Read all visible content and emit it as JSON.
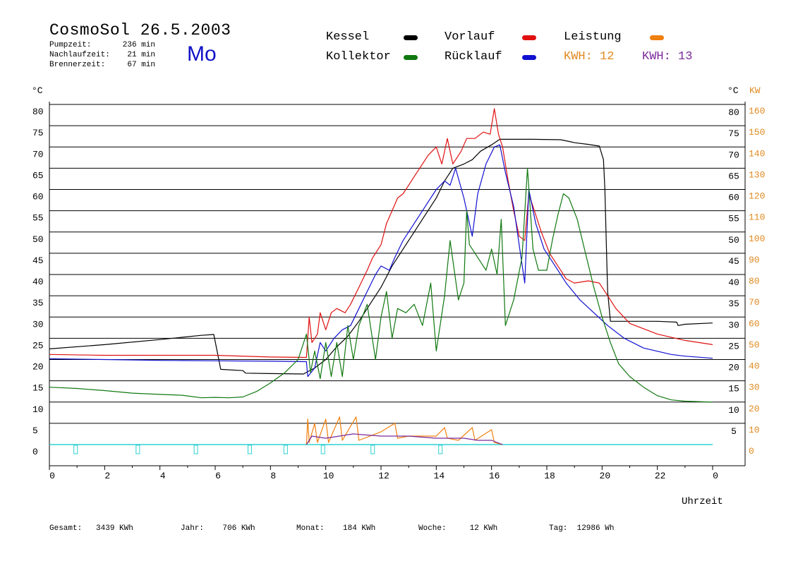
{
  "header": {
    "title": "CosmoSol 26.5.2003",
    "day": "Mo",
    "stats": [
      {
        "label": "Pumpzeit:",
        "value": "236 min"
      },
      {
        "label": "Nachlaufzeit:",
        "value": "21 min"
      },
      {
        "label": "Brennerzeit:",
        "value": "67 min"
      }
    ]
  },
  "legend": {
    "kessel": {
      "label": "Kessel",
      "color": "#000000"
    },
    "kollektor": {
      "label": "Kollektor",
      "color": "#107810"
    },
    "vorlauf": {
      "label": "Vorlauf",
      "color": "#e01010"
    },
    "ruecklauf": {
      "label": "Rücklauf",
      "color": "#1010d0"
    },
    "leistung": {
      "label": "Leistung",
      "color": "#f08010"
    },
    "kwh1": {
      "label": "KWH:",
      "value": "12",
      "color": "#e08a20"
    },
    "kwh2": {
      "label": "KWH:",
      "value": "13",
      "color": "#7a2a9a"
    }
  },
  "footer": {
    "gesamt": {
      "label": "Gesamt:",
      "value": "3439 KWh"
    },
    "jahr": {
      "label": "Jahr:",
      "value": "706 KWh"
    },
    "monat": {
      "label": "Monat:",
      "value": "184 KWh"
    },
    "woche": {
      "label": "Woche:",
      "value": "12 KWh"
    },
    "tag": {
      "label": "Tag:",
      "value": "12986 Wh"
    }
  },
  "chart_data": {
    "type": "line",
    "title": "CosmoSol 26.5.2003",
    "xlabel": "Uhrzeit",
    "ylabel": "°C",
    "y2label": "KW",
    "xlim": [
      0,
      24
    ],
    "ylim": [
      0,
      80
    ],
    "y2lim": [
      0,
      160
    ],
    "grid": true,
    "legend_position": "top",
    "x_ticks": [
      "0",
      "2",
      "4",
      "6",
      "8",
      "10",
      "12",
      "14",
      "16",
      "18",
      "20",
      "22",
      "0"
    ],
    "y_ticks_left": [
      "0",
      "5",
      "10",
      "15",
      "20",
      "25",
      "30",
      "35",
      "40",
      "45",
      "50",
      "55",
      "60",
      "65",
      "70",
      "75",
      "80"
    ],
    "y_ticks_right": [
      "5",
      "10",
      "15",
      "20",
      "25",
      "30",
      "35",
      "40",
      "45",
      "50",
      "55",
      "60",
      "65",
      "70",
      "75",
      "80"
    ],
    "y2_ticks": [
      "0",
      "10",
      "20",
      "30",
      "40",
      "50",
      "60",
      "70",
      "80",
      "90",
      "100",
      "110",
      "120",
      "130",
      "140",
      "150",
      "160"
    ],
    "series": [
      {
        "name": "Kessel",
        "color": "#000000",
        "points": [
          [
            0,
            22.5
          ],
          [
            2,
            23.5
          ],
          [
            4,
            24.7
          ],
          [
            5.5,
            25.7
          ],
          [
            5.95,
            25.9
          ],
          [
            6.1,
            21
          ],
          [
            6.2,
            17.7
          ],
          [
            7,
            17.4
          ],
          [
            7.1,
            16.8
          ],
          [
            8,
            16.7
          ],
          [
            9.2,
            16.6
          ],
          [
            9.3,
            17
          ],
          [
            9.6,
            18
          ],
          [
            10,
            20
          ],
          [
            10.4,
            23
          ],
          [
            10.8,
            25.5
          ],
          [
            11.2,
            29
          ],
          [
            11.6,
            33
          ],
          [
            12,
            37
          ],
          [
            12.4,
            42
          ],
          [
            12.8,
            46
          ],
          [
            13.2,
            50
          ],
          [
            13.6,
            54
          ],
          [
            14,
            58
          ],
          [
            14.3,
            62
          ],
          [
            14.6,
            65
          ],
          [
            15,
            66
          ],
          [
            15.3,
            67
          ],
          [
            15.6,
            69
          ],
          [
            16,
            70.5
          ],
          [
            16.3,
            71.8
          ],
          [
            16.7,
            71.8
          ],
          [
            17.5,
            71.8
          ],
          [
            18.5,
            71.7
          ],
          [
            18.8,
            71.3
          ],
          [
            19,
            71
          ],
          [
            19.5,
            70.6
          ],
          [
            19.9,
            70.2
          ],
          [
            20.05,
            67
          ],
          [
            20.1,
            60
          ],
          [
            20.15,
            48
          ],
          [
            20.2,
            36
          ],
          [
            20.3,
            29
          ],
          [
            22,
            29
          ],
          [
            22.7,
            28.8
          ],
          [
            22.75,
            28
          ],
          [
            23,
            28.3
          ],
          [
            24,
            28.6
          ]
        ]
      },
      {
        "name": "Vorlauf",
        "color": "#e01010",
        "points": [
          [
            0,
            21.2
          ],
          [
            2,
            21
          ],
          [
            4,
            21
          ],
          [
            6,
            21
          ],
          [
            8,
            20.6
          ],
          [
            9.3,
            20.5
          ],
          [
            9.4,
            30
          ],
          [
            9.5,
            24
          ],
          [
            9.7,
            26
          ],
          [
            9.8,
            31
          ],
          [
            10,
            27
          ],
          [
            10.2,
            31
          ],
          [
            10.4,
            32
          ],
          [
            10.7,
            31
          ],
          [
            10.9,
            33
          ],
          [
            11.2,
            37
          ],
          [
            11.5,
            41
          ],
          [
            11.7,
            44
          ],
          [
            12,
            47
          ],
          [
            12.2,
            52
          ],
          [
            12.4,
            55
          ],
          [
            12.6,
            58
          ],
          [
            12.8,
            59
          ],
          [
            13.1,
            62
          ],
          [
            13.4,
            65
          ],
          [
            13.7,
            68
          ],
          [
            14,
            70
          ],
          [
            14.2,
            66
          ],
          [
            14.4,
            72
          ],
          [
            14.6,
            66
          ],
          [
            14.9,
            69
          ],
          [
            15.1,
            72
          ],
          [
            15.4,
            72
          ],
          [
            15.7,
            73.5
          ],
          [
            15.95,
            73
          ],
          [
            16.1,
            79
          ],
          [
            16.25,
            73
          ],
          [
            16.4,
            70
          ],
          [
            16.6,
            62
          ],
          [
            16.8,
            55
          ],
          [
            17,
            49
          ],
          [
            17.2,
            48
          ],
          [
            17.35,
            59
          ],
          [
            17.5,
            56
          ],
          [
            17.8,
            50
          ],
          [
            18.1,
            45
          ],
          [
            18.4,
            42
          ],
          [
            18.7,
            39
          ],
          [
            19,
            38
          ],
          [
            19.5,
            38.5
          ],
          [
            19.9,
            38
          ],
          [
            20.2,
            35
          ],
          [
            20.5,
            32
          ],
          [
            21,
            28.5
          ],
          [
            22,
            26
          ],
          [
            23,
            24.5
          ],
          [
            24,
            23.5
          ]
        ]
      },
      {
        "name": "Rücklauf",
        "color": "#1010d0",
        "points": [
          [
            0,
            20.2
          ],
          [
            2,
            20
          ],
          [
            4,
            19.8
          ],
          [
            6,
            19.7
          ],
          [
            8,
            19.6
          ],
          [
            9.3,
            19.5
          ],
          [
            9.35,
            16
          ],
          [
            9.6,
            18
          ],
          [
            9.8,
            24
          ],
          [
            10,
            22
          ],
          [
            10.3,
            25
          ],
          [
            10.6,
            27
          ],
          [
            10.9,
            28
          ],
          [
            11.2,
            32
          ],
          [
            11.5,
            36
          ],
          [
            11.8,
            40
          ],
          [
            12,
            42
          ],
          [
            12.3,
            41
          ],
          [
            12.5,
            44
          ],
          [
            12.8,
            48
          ],
          [
            13.2,
            52
          ],
          [
            13.6,
            56
          ],
          [
            14,
            60
          ],
          [
            14.3,
            62
          ],
          [
            14.5,
            61
          ],
          [
            14.7,
            65
          ],
          [
            15,
            58
          ],
          [
            15.3,
            49
          ],
          [
            15.5,
            59
          ],
          [
            15.8,
            66
          ],
          [
            16.1,
            70
          ],
          [
            16.3,
            70.5
          ],
          [
            16.5,
            64
          ],
          [
            16.8,
            56
          ],
          [
            17,
            47
          ],
          [
            17.2,
            38
          ],
          [
            17.35,
            60
          ],
          [
            17.6,
            52
          ],
          [
            17.9,
            46
          ],
          [
            18.3,
            42
          ],
          [
            18.7,
            38
          ],
          [
            19.2,
            34
          ],
          [
            19.7,
            31
          ],
          [
            20.2,
            28
          ],
          [
            20.8,
            25
          ],
          [
            21.5,
            22.7
          ],
          [
            22.5,
            21.2
          ],
          [
            23,
            20.8
          ],
          [
            24,
            20.3
          ]
        ]
      },
      {
        "name": "Kollektor",
        "color": "#107810",
        "points": [
          [
            0,
            13.5
          ],
          [
            1,
            13.2
          ],
          [
            2,
            12.7
          ],
          [
            3,
            12.1
          ],
          [
            4,
            11.8
          ],
          [
            4.8,
            11.6
          ],
          [
            5.5,
            11
          ],
          [
            6,
            11.1
          ],
          [
            6.5,
            11
          ],
          [
            7,
            11.2
          ],
          [
            7.5,
            12.5
          ],
          [
            8,
            14.5
          ],
          [
            8.5,
            16.8
          ],
          [
            9,
            20
          ],
          [
            9.3,
            26
          ],
          [
            9.45,
            17
          ],
          [
            9.6,
            22
          ],
          [
            9.8,
            15.5
          ],
          [
            10,
            24
          ],
          [
            10.2,
            16
          ],
          [
            10.4,
            24
          ],
          [
            10.6,
            16
          ],
          [
            10.8,
            28
          ],
          [
            11,
            20
          ],
          [
            11.2,
            28
          ],
          [
            11.5,
            33
          ],
          [
            11.8,
            20
          ],
          [
            12,
            30
          ],
          [
            12.2,
            36
          ],
          [
            12.4,
            25
          ],
          [
            12.6,
            32
          ],
          [
            12.9,
            31
          ],
          [
            13.2,
            33
          ],
          [
            13.5,
            28
          ],
          [
            13.8,
            38
          ],
          [
            14,
            22
          ],
          [
            14.3,
            35
          ],
          [
            14.5,
            48
          ],
          [
            14.8,
            34
          ],
          [
            15,
            38
          ],
          [
            15.1,
            55
          ],
          [
            15.2,
            47
          ],
          [
            15.5,
            44
          ],
          [
            15.8,
            41
          ],
          [
            16,
            46
          ],
          [
            16.2,
            40
          ],
          [
            16.35,
            53
          ],
          [
            16.5,
            28
          ],
          [
            16.8,
            34
          ],
          [
            17.1,
            44
          ],
          [
            17.3,
            65
          ],
          [
            17.5,
            46
          ],
          [
            17.7,
            41
          ],
          [
            18,
            41
          ],
          [
            18.2,
            48
          ],
          [
            18.4,
            54
          ],
          [
            18.6,
            59
          ],
          [
            18.8,
            58
          ],
          [
            19.1,
            53
          ],
          [
            19.4,
            45
          ],
          [
            19.7,
            37
          ],
          [
            20,
            30
          ],
          [
            20.3,
            24
          ],
          [
            20.6,
            19
          ],
          [
            21,
            16
          ],
          [
            21.5,
            13.5
          ],
          [
            22,
            11.5
          ],
          [
            22.5,
            10.5
          ],
          [
            23,
            10.2
          ],
          [
            24,
            10
          ]
        ]
      },
      {
        "name": "Leistung",
        "color": "#f08010",
        "axis": "y2",
        "points": [
          [
            9.3,
            0
          ],
          [
            9.35,
            12
          ],
          [
            9.4,
            1
          ],
          [
            9.6,
            10
          ],
          [
            9.7,
            1
          ],
          [
            10,
            12
          ],
          [
            10.1,
            1
          ],
          [
            10.5,
            13
          ],
          [
            10.6,
            2
          ],
          [
            11.1,
            13
          ],
          [
            11.2,
            2
          ],
          [
            12,
            6
          ],
          [
            12.5,
            10
          ],
          [
            12.6,
            3
          ],
          [
            13,
            4
          ],
          [
            14,
            4
          ],
          [
            14.3,
            8
          ],
          [
            14.4,
            3
          ],
          [
            14.8,
            2
          ],
          [
            15.3,
            8
          ],
          [
            15.4,
            2
          ],
          [
            16,
            7
          ],
          [
            16.1,
            1
          ],
          [
            16.4,
            0
          ]
        ]
      },
      {
        "name": "KWH",
        "color": "#7a2a9a",
        "axis": "y2",
        "points": [
          [
            9.3,
            0
          ],
          [
            9.5,
            4
          ],
          [
            10,
            3
          ],
          [
            11,
            5
          ],
          [
            12,
            4
          ],
          [
            13,
            4
          ],
          [
            14,
            3
          ],
          [
            15,
            3
          ],
          [
            15.5,
            2
          ],
          [
            16,
            2
          ],
          [
            16.4,
            0
          ]
        ]
      }
    ]
  }
}
